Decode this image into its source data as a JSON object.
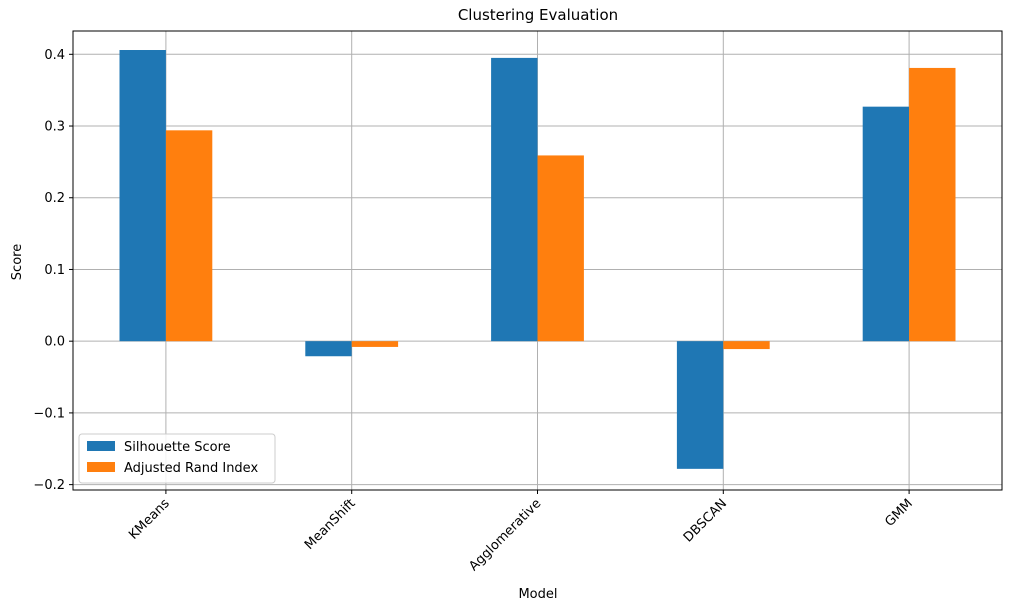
{
  "chart_data": {
    "type": "bar",
    "title": "Clustering Evaluation",
    "xlabel": "Model",
    "ylabel": "Score",
    "categories": [
      "KMeans",
      "MeanShift",
      "Agglomerative",
      "DBSCAN",
      "GMM"
    ],
    "series": [
      {
        "name": "Silhouette Score",
        "color": "#1f77b4",
        "values": [
          0.406,
          -0.021,
          0.395,
          -0.178,
          0.327
        ]
      },
      {
        "name": "Adjusted Rand Index",
        "color": "#ff7f0e",
        "values": [
          0.294,
          -0.008,
          0.259,
          -0.011,
          0.381
        ]
      }
    ],
    "ylim": [
      -0.2075,
      0.4325
    ],
    "yticks": [
      {
        "value": -0.2,
        "label": "−0.2"
      },
      {
        "value": -0.1,
        "label": "−0.1"
      },
      {
        "value": 0.0,
        "label": "0.0"
      },
      {
        "value": 0.1,
        "label": "0.1"
      },
      {
        "value": 0.2,
        "label": "0.2"
      },
      {
        "value": 0.3,
        "label": "0.3"
      },
      {
        "value": 0.4,
        "label": "0.4"
      }
    ],
    "xtick_rotation_deg": 45,
    "grid": true,
    "legend_position": "lower-left"
  }
}
